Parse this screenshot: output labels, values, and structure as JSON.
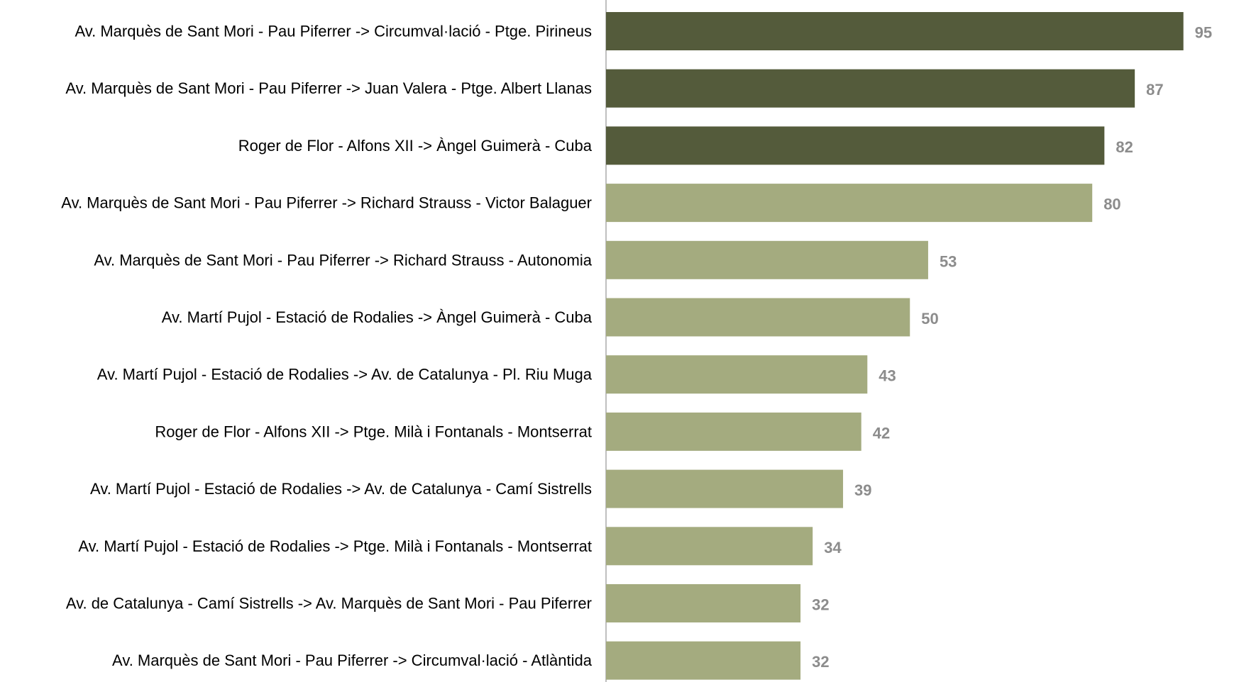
{
  "chart_data": {
    "type": "bar",
    "orientation": "horizontal",
    "title": "",
    "xlabel": "",
    "ylabel": "",
    "categories": [
      "Av. Marquès de Sant Mori - Pau Piferrer -> Circumval·lació - Ptge. Pirineus",
      "Av. Marquès de Sant Mori - Pau Piferrer -> Juan Valera - Ptge. Albert Llanas",
      "Roger de Flor - Alfons XII -> Àngel Guimerà - Cuba",
      "Av. Marquès de Sant Mori - Pau Piferrer -> Richard Strauss - Victor Balaguer",
      "Av. Marquès de Sant Mori - Pau Piferrer -> Richard Strauss - Autonomia",
      "Av. Martí Pujol - Estació de Rodalies -> Àngel Guimerà - Cuba",
      "Av. Martí Pujol - Estació de Rodalies -> Av. de Catalunya - Pl. Riu Muga",
      "Roger de Flor - Alfons XII -> Ptge. Milà i Fontanals - Montserrat",
      "Av. Martí Pujol - Estació de Rodalies -> Av. de Catalunya - Camí Sistrells",
      "Av. Martí Pujol - Estació de Rodalies -> Ptge. Milà i Fontanals - Montserrat",
      "Av. de Catalunya - Camí Sistrells -> Av. Marquès de Sant Mori - Pau Piferrer",
      "Av. Marquès de Sant Mori - Pau Piferrer -> Circumval·lació - Atlàntida"
    ],
    "values": [
      95,
      87,
      82,
      80,
      53,
      50,
      43,
      42,
      39,
      34,
      32,
      32
    ],
    "highlighted_count": 3,
    "xlim": [
      0,
      100
    ],
    "grid": false,
    "legend": "none",
    "data_labels": true
  },
  "colors": {
    "highlight_bar": "#545b3b",
    "bar": "#a4ab7f",
    "axis_line": "#bfbfbf",
    "category_text": "#000000",
    "value_text": "#8c8c8c"
  }
}
